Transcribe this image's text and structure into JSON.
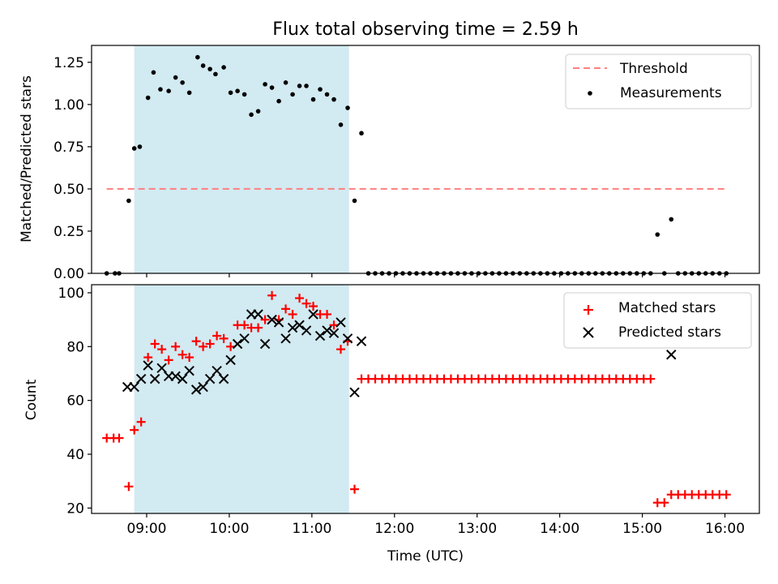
{
  "title": "Flux total observing time = 2.59 h",
  "xlabel": "Time (UTC)",
  "x_ticks": [
    "09:00",
    "10:00",
    "11:00",
    "12:00",
    "13:00",
    "14:00",
    "15:00",
    "16:00"
  ],
  "colors": {
    "threshold": "#ff7f7f",
    "measurement": "#000000",
    "matched": "#ff0000",
    "predicted": "#000000",
    "observing_window": "#add8e6"
  },
  "chart_data": [
    {
      "type": "scatter",
      "ylabel": "Matched/Predicted stars",
      "xlim": [
        "08:20",
        "16:25"
      ],
      "ylim": [
        0,
        1.35
      ],
      "y_ticks": [
        0.0,
        0.25,
        0.5,
        0.75,
        1.0,
        1.25
      ],
      "y_tick_labels": [
        "0.00",
        "0.25",
        "0.50",
        "0.75",
        "1.00",
        "1.25"
      ],
      "shaded_region": {
        "start": "08:51",
        "end": "11:27"
      },
      "legend": {
        "placement": "top-right",
        "entries": [
          "Threshold",
          "Measurements"
        ]
      },
      "threshold": {
        "name": "Threshold",
        "y": 0.5,
        "x_start": "08:31",
        "x_end": "16:01",
        "style": "dashed"
      },
      "series": [
        {
          "name": "Measurements",
          "points": [
            [
              "08:31",
              0.0
            ],
            [
              "08:37",
              0.0
            ],
            [
              "08:40",
              0.0
            ],
            [
              "08:47",
              0.43
            ],
            [
              "08:51",
              0.74
            ],
            [
              "08:55",
              0.75
            ],
            [
              "09:01",
              1.04
            ],
            [
              "09:05",
              1.19
            ],
            [
              "09:10",
              1.09
            ],
            [
              "09:16",
              1.08
            ],
            [
              "09:21",
              1.16
            ],
            [
              "09:26",
              1.13
            ],
            [
              "09:31",
              1.07
            ],
            [
              "09:37",
              1.28
            ],
            [
              "09:41",
              1.23
            ],
            [
              "09:46",
              1.21
            ],
            [
              "09:50",
              1.18
            ],
            [
              "09:56",
              1.22
            ],
            [
              "10:01",
              1.07
            ],
            [
              "10:06",
              1.08
            ],
            [
              "10:11",
              1.06
            ],
            [
              "10:16",
              0.94
            ],
            [
              "10:21",
              0.96
            ],
            [
              "10:26",
              1.12
            ],
            [
              "10:31",
              1.1
            ],
            [
              "10:36",
              1.02
            ],
            [
              "10:41",
              1.13
            ],
            [
              "10:46",
              1.06
            ],
            [
              "10:51",
              1.11
            ],
            [
              "10:56",
              1.11
            ],
            [
              "11:01",
              1.03
            ],
            [
              "11:06",
              1.09
            ],
            [
              "11:11",
              1.06
            ],
            [
              "11:16",
              1.03
            ],
            [
              "11:21",
              0.88
            ],
            [
              "11:26",
              0.98
            ],
            [
              "11:31",
              0.43
            ],
            [
              "11:36",
              0.83
            ],
            [
              "11:41",
              0.0
            ],
            [
              "11:46",
              0.0
            ],
            [
              "11:51",
              0.0
            ],
            [
              "11:56",
              0.0
            ],
            [
              "12:01",
              0.0
            ],
            [
              "12:06",
              0.0
            ],
            [
              "12:11",
              0.0
            ],
            [
              "12:16",
              0.0
            ],
            [
              "12:21",
              0.0
            ],
            [
              "12:26",
              0.0
            ],
            [
              "12:31",
              0.0
            ],
            [
              "12:36",
              0.0
            ],
            [
              "12:41",
              0.0
            ],
            [
              "12:46",
              0.0
            ],
            [
              "12:51",
              0.0
            ],
            [
              "12:56",
              0.0
            ],
            [
              "13:01",
              0.0
            ],
            [
              "13:06",
              0.0
            ],
            [
              "13:11",
              0.0
            ],
            [
              "13:16",
              0.0
            ],
            [
              "13:21",
              0.0
            ],
            [
              "13:26",
              0.0
            ],
            [
              "13:31",
              0.0
            ],
            [
              "13:36",
              0.0
            ],
            [
              "13:41",
              0.0
            ],
            [
              "13:46",
              0.0
            ],
            [
              "13:51",
              0.0
            ],
            [
              "13:56",
              0.0
            ],
            [
              "14:01",
              0.0
            ],
            [
              "14:06",
              0.0
            ],
            [
              "14:11",
              0.0
            ],
            [
              "14:16",
              0.0
            ],
            [
              "14:21",
              0.0
            ],
            [
              "14:26",
              0.0
            ],
            [
              "14:31",
              0.0
            ],
            [
              "14:36",
              0.0
            ],
            [
              "14:41",
              0.0
            ],
            [
              "14:46",
              0.0
            ],
            [
              "14:51",
              0.0
            ],
            [
              "14:56",
              0.0
            ],
            [
              "15:01",
              0.0
            ],
            [
              "15:06",
              0.0
            ],
            [
              "15:11",
              0.23
            ],
            [
              "15:16",
              0.0
            ],
            [
              "15:21",
              0.32
            ],
            [
              "15:26",
              0.0
            ],
            [
              "15:31",
              0.0
            ],
            [
              "15:36",
              0.0
            ],
            [
              "15:41",
              0.0
            ],
            [
              "15:46",
              0.0
            ],
            [
              "15:51",
              0.0
            ],
            [
              "15:56",
              0.0
            ],
            [
              "16:01",
              0.0
            ]
          ]
        }
      ]
    },
    {
      "type": "scatter",
      "ylabel": "Count",
      "xlim": [
        "08:20",
        "16:25"
      ],
      "ylim": [
        18,
        103
      ],
      "y_ticks": [
        20,
        40,
        60,
        80,
        100
      ],
      "y_tick_labels": [
        "20",
        "40",
        "60",
        "80",
        "100"
      ],
      "shaded_region": {
        "start": "08:51",
        "end": "11:27"
      },
      "legend": {
        "placement": "top-right",
        "entries": [
          "Matched stars",
          "Predicted stars"
        ]
      },
      "series": [
        {
          "name": "Matched stars",
          "marker": "plus",
          "points": [
            [
              "08:31",
              46
            ],
            [
              "08:36",
              46
            ],
            [
              "08:40",
              46
            ],
            [
              "08:47",
              28
            ],
            [
              "08:51",
              49
            ],
            [
              "08:56",
              52
            ],
            [
              "09:01",
              76
            ],
            [
              "09:06",
              81
            ],
            [
              "09:11",
              79
            ],
            [
              "09:16",
              75
            ],
            [
              "09:21",
              80
            ],
            [
              "09:26",
              77
            ],
            [
              "09:31",
              76
            ],
            [
              "09:36",
              82
            ],
            [
              "09:41",
              80
            ],
            [
              "09:46",
              81
            ],
            [
              "09:51",
              84
            ],
            [
              "09:56",
              83
            ],
            [
              "10:01",
              80
            ],
            [
              "10:06",
              88
            ],
            [
              "10:11",
              88
            ],
            [
              "10:16",
              87
            ],
            [
              "10:21",
              87
            ],
            [
              "10:26",
              90
            ],
            [
              "10:31",
              99
            ],
            [
              "10:36",
              90
            ],
            [
              "10:41",
              94
            ],
            [
              "10:46",
              92
            ],
            [
              "10:51",
              98
            ],
            [
              "10:56",
              96
            ],
            [
              "11:01",
              95
            ],
            [
              "11:06",
              92
            ],
            [
              "11:11",
              92
            ],
            [
              "11:16",
              88
            ],
            [
              "11:21",
              79
            ],
            [
              "11:26",
              82
            ],
            [
              "11:31",
              27
            ],
            [
              "11:36",
              68
            ],
            [
              "11:41",
              68
            ],
            [
              "11:46",
              68
            ],
            [
              "11:51",
              68
            ],
            [
              "11:56",
              68
            ],
            [
              "12:01",
              68
            ],
            [
              "12:06",
              68
            ],
            [
              "12:11",
              68
            ],
            [
              "12:16",
              68
            ],
            [
              "12:21",
              68
            ],
            [
              "12:26",
              68
            ],
            [
              "12:31",
              68
            ],
            [
              "12:36",
              68
            ],
            [
              "12:41",
              68
            ],
            [
              "12:46",
              68
            ],
            [
              "12:51",
              68
            ],
            [
              "12:56",
              68
            ],
            [
              "13:01",
              68
            ],
            [
              "13:06",
              68
            ],
            [
              "13:11",
              68
            ],
            [
              "13:16",
              68
            ],
            [
              "13:21",
              68
            ],
            [
              "13:26",
              68
            ],
            [
              "13:31",
              68
            ],
            [
              "13:36",
              68
            ],
            [
              "13:41",
              68
            ],
            [
              "13:46",
              68
            ],
            [
              "13:51",
              68
            ],
            [
              "13:56",
              68
            ],
            [
              "14:01",
              68
            ],
            [
              "14:06",
              68
            ],
            [
              "14:11",
              68
            ],
            [
              "14:16",
              68
            ],
            [
              "14:21",
              68
            ],
            [
              "14:26",
              68
            ],
            [
              "14:31",
              68
            ],
            [
              "14:36",
              68
            ],
            [
              "14:41",
              68
            ],
            [
              "14:46",
              68
            ],
            [
              "14:51",
              68
            ],
            [
              "14:56",
              68
            ],
            [
              "15:01",
              68
            ],
            [
              "15:06",
              68
            ],
            [
              "15:11",
              22
            ],
            [
              "15:16",
              22
            ],
            [
              "15:21",
              25
            ],
            [
              "15:26",
              25
            ],
            [
              "15:31",
              25
            ],
            [
              "15:36",
              25
            ],
            [
              "15:41",
              25
            ],
            [
              "15:46",
              25
            ],
            [
              "15:51",
              25
            ],
            [
              "15:56",
              25
            ],
            [
              "16:01",
              25
            ]
          ]
        },
        {
          "name": "Predicted stars",
          "marker": "x",
          "points": [
            [
              "08:46",
              65
            ],
            [
              "08:51",
              65
            ],
            [
              "08:56",
              68
            ],
            [
              "09:01",
              73
            ],
            [
              "09:06",
              68
            ],
            [
              "09:11",
              72
            ],
            [
              "09:16",
              69
            ],
            [
              "09:21",
              69
            ],
            [
              "09:26",
              68
            ],
            [
              "09:31",
              71
            ],
            [
              "09:36",
              64
            ],
            [
              "09:41",
              65
            ],
            [
              "09:46",
              68
            ],
            [
              "09:51",
              71
            ],
            [
              "09:56",
              68
            ],
            [
              "10:01",
              75
            ],
            [
              "10:06",
              81
            ],
            [
              "10:11",
              83
            ],
            [
              "10:16",
              92
            ],
            [
              "10:21",
              92
            ],
            [
              "10:26",
              81
            ],
            [
              "10:31",
              90
            ],
            [
              "10:36",
              89
            ],
            [
              "10:41",
              83
            ],
            [
              "10:46",
              87
            ],
            [
              "10:51",
              88
            ],
            [
              "10:56",
              86
            ],
            [
              "11:01",
              92
            ],
            [
              "11:06",
              84
            ],
            [
              "11:11",
              86
            ],
            [
              "11:16",
              85
            ],
            [
              "11:21",
              89
            ],
            [
              "11:26",
              83
            ],
            [
              "11:31",
              63
            ],
            [
              "11:36",
              82
            ],
            [
              "15:21",
              77
            ]
          ]
        }
      ]
    }
  ]
}
